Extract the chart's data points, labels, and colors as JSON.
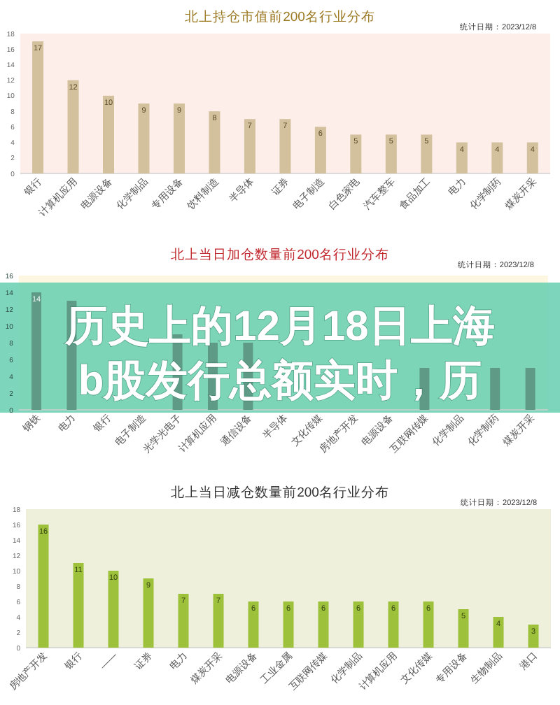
{
  "chart_data": [
    {
      "type": "bar",
      "title": "北上持仓市值前200名行业分布",
      "annotations": [
        "统计日期：2023/12/8"
      ],
      "categories": [
        "银行",
        "计算机应用",
        "电源设备",
        "化学制品",
        "专用设备",
        "饮料制造",
        "半导体",
        "证券",
        "电子制造",
        "白色家电",
        "汽车整车",
        "食品加工",
        "电力",
        "化学制药",
        "煤炭开采"
      ],
      "values": [
        17,
        12,
        10,
        9,
        9,
        8,
        7,
        7,
        6,
        5,
        5,
        5,
        4,
        4,
        4
      ],
      "color": "#d3c19d",
      "ylim": [
        0,
        18
      ],
      "yticks": [
        0,
        2,
        4,
        6,
        8,
        10,
        12,
        14,
        16,
        18
      ],
      "data_labels": true
    },
    {
      "type": "bar",
      "title": "北上当日加仓数量前200名行业分布",
      "annotations": [
        "统计日期：2023/12/8"
      ],
      "categories": [
        "钢铁",
        "电力",
        "银行",
        "电子制造",
        "光学光电子",
        "计算机应用",
        "通信设备",
        "半导体",
        "文化传媒",
        "房地产开发",
        "电源设备",
        "互联网传媒",
        "化学制品",
        "化学制药",
        "煤炭开采"
      ],
      "values": [
        14,
        13,
        null,
        null,
        9,
        8,
        8,
        null,
        null,
        null,
        null,
        5,
        null,
        5,
        5
      ],
      "value_labels": [
        "14",
        null,
        null,
        null,
        null,
        null,
        null,
        null,
        null,
        null,
        null,
        null,
        null,
        null,
        null
      ],
      "color": "#5e9a86",
      "ylim": [
        0,
        16
      ],
      "yticks": [
        0,
        2,
        4,
        6,
        8,
        10,
        12,
        14,
        16
      ]
    },
    {
      "type": "other",
      "title": "历史上的12月18日上海b股发行总额实时，历"
    },
    {
      "type": "bar",
      "title": "北上当日减仓数量前200名行业分布",
      "annotations": [
        "统计日期：2023/12/8"
      ],
      "categories": [
        "房地产开发",
        "银行",
        "——",
        "证券",
        "电力",
        "煤炭开采",
        "电源设备",
        "工业金属",
        "互联网传媒",
        "化学制品",
        "计算机应用",
        "文化传媒",
        "专用设备",
        "生物制品",
        "港口"
      ],
      "values": [
        16,
        11,
        10,
        9,
        7,
        7,
        6,
        6,
        6,
        6,
        6,
        6,
        5,
        4,
        3
      ],
      "color": "#9dc13b",
      "ylim": [
        0,
        18
      ],
      "yticks": [
        0,
        2,
        4,
        6,
        8,
        10,
        12,
        14,
        16,
        18
      ],
      "data_labels": true
    }
  ]
}
